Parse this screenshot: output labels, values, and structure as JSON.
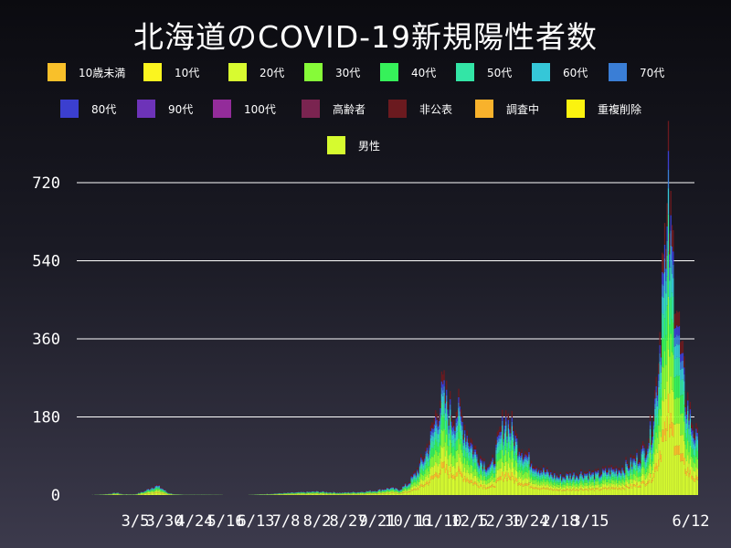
{
  "chart_data": {
    "type": "bar",
    "title": "北海道のCOVID-19新規陽性者数",
    "stacked": true,
    "ylim": [
      0,
      720
    ],
    "yticks": [
      0,
      180,
      360,
      540,
      720
    ],
    "xtick_labels": [
      "3/5",
      "3/30",
      "4/24",
      "5/16",
      "6/13",
      "7/8",
      "8/2",
      "8/27",
      "9/21",
      "10/16",
      "11/10",
      "12/5",
      "12/30",
      "1/24",
      "2/18",
      "3/15",
      "6/12"
    ],
    "grid": true,
    "legend_position": "top",
    "legend": [
      {
        "label": "10歳未満",
        "color": "#f9c02a"
      },
      {
        "label": "10代",
        "color": "#fbf51f"
      },
      {
        "label": "20代",
        "color": "#d8fb30"
      },
      {
        "label": "30代",
        "color": "#86fb38"
      },
      {
        "label": "40代",
        "color": "#36f15a"
      },
      {
        "label": "50代",
        "color": "#33e5a6"
      },
      {
        "label": "60代",
        "color": "#35c7d8"
      },
      {
        "label": "70代",
        "color": "#3a7ed6"
      },
      {
        "label": "80代",
        "color": "#3b3fcf"
      },
      {
        "label": "90代",
        "color": "#6d33b8"
      },
      {
        "label": "100代",
        "color": "#932c9a"
      },
      {
        "label": "高齢者",
        "color": "#7a2450"
      },
      {
        "label": "非公表",
        "color": "#6b1a1f"
      },
      {
        "label": "調査中",
        "color": "#f8b22c"
      },
      {
        "label": "重複削除",
        "color": "#fbf30f"
      },
      {
        "label": "男性",
        "color": "#d6fb2f"
      }
    ],
    "series_colors": [
      "#d6fb2f",
      "#f9c02a",
      "#d8fb30",
      "#86fb38",
      "#36f15a",
      "#33e5a6",
      "#35c7d8",
      "#3a7ed6",
      "#3b3fcf",
      "#6b1a1f"
    ],
    "series_shares": [
      0.22,
      0.05,
      0.12,
      0.14,
      0.12,
      0.1,
      0.07,
      0.05,
      0.05,
      0.08
    ],
    "daily_totals_anchor": [
      [
        0,
        0
      ],
      [
        10,
        1
      ],
      [
        18,
        3
      ],
      [
        25,
        6
      ],
      [
        30,
        2
      ],
      [
        40,
        2
      ],
      [
        48,
        10
      ],
      [
        53,
        18
      ],
      [
        57,
        24
      ],
      [
        62,
        18
      ],
      [
        67,
        6
      ],
      [
        73,
        2
      ],
      [
        80,
        1
      ],
      [
        100,
        1
      ],
      [
        130,
        0
      ],
      [
        150,
        3
      ],
      [
        170,
        6
      ],
      [
        190,
        9
      ],
      [
        210,
        6
      ],
      [
        225,
        8
      ],
      [
        240,
        12
      ],
      [
        250,
        18
      ],
      [
        258,
        14
      ],
      [
        265,
        28
      ],
      [
        272,
        55
      ],
      [
        278,
        90
      ],
      [
        284,
        140
      ],
      [
        290,
        210
      ],
      [
        294,
        250
      ],
      [
        298,
        220
      ],
      [
        302,
        190
      ],
      [
        306,
        210
      ],
      [
        310,
        180
      ],
      [
        314,
        150
      ],
      [
        320,
        110
      ],
      [
        328,
        80
      ],
      [
        334,
        70
      ],
      [
        340,
        130
      ],
      [
        345,
        190
      ],
      [
        350,
        170
      ],
      [
        355,
        130
      ],
      [
        360,
        110
      ],
      [
        365,
        90
      ],
      [
        372,
        70
      ],
      [
        380,
        55
      ],
      [
        390,
        45
      ],
      [
        400,
        50
      ],
      [
        410,
        55
      ],
      [
        420,
        50
      ],
      [
        430,
        60
      ],
      [
        440,
        65
      ],
      [
        450,
        80
      ],
      [
        460,
        110
      ],
      [
        466,
        160
      ],
      [
        470,
        260
      ],
      [
        474,
        420
      ],
      [
        476,
        700
      ],
      [
        478,
        520
      ],
      [
        480,
        720
      ],
      [
        482,
        600
      ],
      [
        484,
        560
      ],
      [
        486,
        500
      ],
      [
        488,
        420
      ],
      [
        490,
        340
      ],
      [
        494,
        250
      ],
      [
        498,
        190
      ],
      [
        502,
        150
      ],
      [
        504,
        130
      ]
    ],
    "days": 505
  }
}
